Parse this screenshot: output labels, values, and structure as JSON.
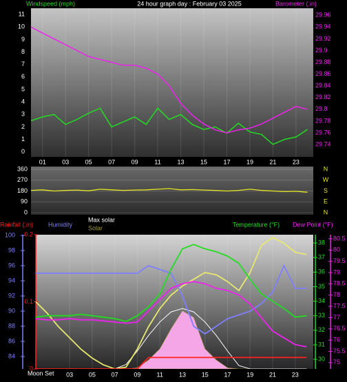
{
  "chart_data": [
    {
      "type": "line",
      "title": "24 hour graph day : February 03 2025",
      "y_label": "Windspeed (mph)",
      "y_color": "#22dd22",
      "y2_label": "Barometer (.in)",
      "y2_color": "#ee22ee",
      "x": [
        0,
        1,
        2,
        3,
        4,
        5,
        6,
        7,
        8,
        9,
        10,
        11,
        12,
        13,
        14,
        15,
        16,
        17,
        18,
        19,
        20,
        21,
        22,
        23,
        24
      ],
      "xlim": [
        0,
        24.5
      ],
      "xticks": [
        {
          "value": 1,
          "label": "01"
        },
        {
          "value": 3,
          "label": "03"
        },
        {
          "value": 5,
          "label": "05"
        },
        {
          "value": 7,
          "label": "07"
        },
        {
          "value": 9,
          "label": "09"
        },
        {
          "value": 11,
          "label": "11"
        },
        {
          "value": 13,
          "label": "13"
        },
        {
          "value": 15,
          "label": "15"
        },
        {
          "value": 17,
          "label": "17"
        },
        {
          "value": 19,
          "label": "19"
        },
        {
          "value": 21,
          "label": "21"
        },
        {
          "value": 23,
          "label": "23"
        }
      ],
      "ylim": [
        -0.4,
        11.5
      ],
      "yticks": [
        0,
        1,
        2,
        3,
        4,
        5,
        6,
        7,
        8,
        9,
        10,
        11
      ],
      "y2lim": [
        29.719,
        29.972
      ],
      "y2ticks": [
        29.74,
        29.76,
        29.78,
        29.8,
        29.82,
        29.84,
        29.86,
        29.88,
        29.9,
        29.92,
        29.94,
        29.96
      ],
      "series": [
        {
          "color": "#22dd22",
          "values": [
            2.5,
            2.8,
            3.0,
            2.2,
            2.6,
            3.1,
            3.5,
            2.0,
            2.4,
            2.8,
            2.2,
            3.5,
            2.6,
            3.0,
            2.2,
            1.8,
            2.0,
            1.5,
            2.3,
            1.6,
            1.4,
            0.6,
            1.0,
            1.2,
            1.8
          ]
        },
        {
          "color": "#ee22ee",
          "axis": "y2",
          "values": [
            29.94,
            29.93,
            29.92,
            29.91,
            29.9,
            29.89,
            29.885,
            29.88,
            29.875,
            29.875,
            29.87,
            29.86,
            29.84,
            29.81,
            29.79,
            29.775,
            29.765,
            29.76,
            29.765,
            29.768,
            29.775,
            29.785,
            29.795,
            29.805,
            29.8
          ]
        }
      ]
    },
    {
      "type": "line",
      "x": [
        0,
        1,
        2,
        3,
        4,
        5,
        6,
        7,
        8,
        9,
        10,
        11,
        12,
        13,
        14,
        15,
        16,
        17,
        18,
        19,
        20,
        21,
        22,
        23,
        24
      ],
      "xlim": [
        0,
        24.5
      ],
      "ylim": [
        -17,
        383
      ],
      "yticks": [
        0,
        90,
        180,
        270,
        360
      ],
      "y2ticks": [
        {
          "value": 360,
          "label": "N"
        },
        {
          "value": 270,
          "label": "W"
        },
        {
          "value": 180,
          "label": "S"
        },
        {
          "value": 90,
          "label": "E"
        },
        {
          "value": 0,
          "label": "N"
        }
      ],
      "series": [
        {
          "color": "#e8e820",
          "values": [
            185,
            190,
            180,
            185,
            188,
            182,
            195,
            190,
            185,
            188,
            190,
            195,
            200,
            190,
            192,
            188,
            185,
            180,
            185,
            195,
            185,
            180,
            175,
            178,
            170
          ]
        }
      ]
    },
    {
      "type": "line",
      "x": [
        0,
        1,
        2,
        3,
        4,
        5,
        6,
        7,
        8,
        9,
        10,
        11,
        12,
        13,
        14,
        15,
        16,
        17,
        18,
        19,
        20,
        21,
        22,
        23,
        24
      ],
      "xlim": [
        0,
        24.6
      ],
      "xticks": [
        {
          "value": 3,
          "label": "03"
        },
        {
          "value": 5,
          "label": "05"
        },
        {
          "value": 7,
          "label": "07"
        },
        {
          "value": 9,
          "label": "09"
        },
        {
          "value": 11,
          "label": "11"
        },
        {
          "value": 13,
          "label": "13"
        },
        {
          "value": 15,
          "label": "15"
        },
        {
          "value": 17,
          "label": "17"
        },
        {
          "value": 19,
          "label": "19"
        },
        {
          "value": 21,
          "label": "21"
        },
        {
          "value": 23,
          "label": "23"
        }
      ],
      "annotation": "Moon Set",
      "axes": [
        {
          "label": "Rainfall (.in)",
          "color": "#ff2020",
          "lim": [
            0,
            0.2
          ],
          "ticks": [
            0,
            0.1,
            0.2
          ]
        },
        {
          "label": "Humidity",
          "color": "#7f7fff",
          "lim": [
            82.36,
            100.09
          ],
          "ticks": [
            84,
            86,
            88,
            90,
            92,
            94,
            96,
            98,
            100
          ]
        },
        {
          "label": "Temperature (°F)",
          "color": "#22dd22",
          "lim": [
            29.34,
            38.57
          ],
          "ticks": [
            30,
            31,
            32,
            33,
            34,
            35,
            36,
            37,
            38
          ]
        },
        {
          "label": "Dew Point (°F)",
          "color": "#ee22ee",
          "lim": [
            74.72,
            80.68
          ],
          "ticks": [
            75,
            75.5,
            76,
            76.5,
            77,
            77.5,
            78,
            78.5,
            79,
            79.5,
            80,
            80.5
          ]
        },
        {
          "lim": [
            0,
            600
          ]
        }
      ],
      "series": [
        {
          "name": "Solar",
          "color": "#a09a40",
          "fill": "#f4a6e6",
          "axis": 4,
          "values": [
            0,
            0,
            0,
            0,
            0,
            0,
            0,
            0,
            0,
            5,
            40,
            90,
            180,
            260,
            230,
            90,
            40,
            5,
            0,
            0,
            0,
            0,
            0,
            0,
            0
          ]
        },
        {
          "name": "Max solar",
          "color": "#ffffff",
          "axis": 4,
          "values": [
            0,
            0,
            0,
            0,
            0,
            0,
            0,
            0,
            20,
            80,
            150,
            210,
            255,
            270,
            255,
            210,
            150,
            80,
            15,
            0,
            0,
            0,
            0,
            0,
            0
          ]
        },
        {
          "color": "#e8e870",
          "axis": 3,
          "values": [
            77.7,
            77.2,
            76.6,
            76.1,
            75.6,
            75.2,
            74.9,
            74.72,
            74.8,
            75.6,
            76.6,
            77.4,
            78.0,
            78.4,
            78.7,
            79.0,
            78.9,
            78.6,
            78.2,
            79.0,
            80.2,
            80.56,
            80.3,
            79.9,
            79.8
          ]
        },
        {
          "name": "Rainfall (.in)",
          "color": "#ff2020",
          "axis": 0,
          "values": [
            0,
            0,
            0,
            0,
            0,
            0,
            0,
            0,
            0,
            0,
            0.017,
            0.017,
            0.017,
            0.017,
            0.017,
            0.017,
            0.017,
            0.017,
            0.017,
            0.017,
            0.017,
            0.017,
            0.017,
            0.017,
            0.017
          ]
        },
        {
          "name": "Humidity",
          "color": "#7f7fff",
          "axis": 1,
          "values": [
            95,
            95,
            95,
            95,
            95,
            95,
            95,
            95,
            95,
            95,
            96,
            95.5,
            95,
            92,
            88,
            87,
            88,
            89,
            89.5,
            90,
            91,
            92.5,
            96,
            93,
            93
          ]
        },
        {
          "name": "Dew Point (°F)",
          "color": "#ee22ee",
          "axis": 3,
          "values": [
            76.95,
            76.9,
            76.9,
            76.95,
            76.9,
            76.9,
            76.85,
            76.8,
            76.75,
            76.8,
            77.3,
            77.8,
            78.3,
            78.5,
            78.6,
            78.5,
            78.3,
            78.2,
            78.0,
            77.6,
            77.0,
            76.4,
            76.1,
            75.8,
            75.7
          ]
        },
        {
          "name": "Temperature (°F)",
          "color": "#22dd22",
          "axis": 2,
          "values": [
            32.9,
            33,
            33,
            33,
            33.1,
            33,
            32.9,
            32.8,
            32.6,
            33.0,
            33.6,
            34.5,
            36.2,
            37.6,
            37.9,
            37.6,
            37.4,
            37.1,
            36.6,
            35.5,
            34.5,
            34.0,
            33.5,
            32.9,
            33.0
          ]
        }
      ]
    }
  ]
}
